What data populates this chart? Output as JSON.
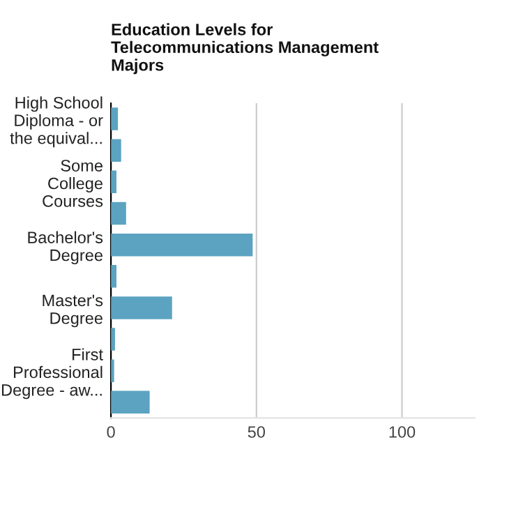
{
  "chart_data": {
    "type": "bar",
    "orientation": "horizontal",
    "title": "Education Levels for\nTelecommunications Management\nMajors",
    "categories": [
      "High School\nDiploma - or\nthe equival...",
      null,
      "Some\nCollege\nCourses",
      null,
      "Bachelor's\nDegree",
      null,
      "Master's\nDegree",
      null,
      "First\nProfessional\nDegree - aw...",
      null
    ],
    "values": [
      2.4,
      3.5,
      1.9,
      5.2,
      48.7,
      1.9,
      21,
      1.4,
      1.1,
      13.3
    ],
    "color": "#5ba3c1",
    "xlim": [
      0,
      125
    ],
    "xticks": [
      0,
      50,
      100
    ],
    "grid": "x",
    "legend": false
  }
}
